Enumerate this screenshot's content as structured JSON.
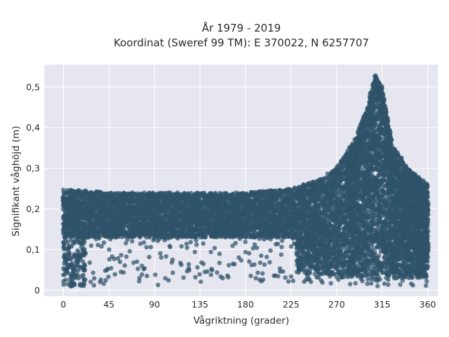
{
  "chart_data": {
    "type": "scatter",
    "title_lines": [
      "År 1979 - 2019",
      "Koordinat (Sweref 99 TM): E 370022, N 6257707"
    ],
    "xlabel": "Vågriktning (grader)",
    "ylabel": "Signifikant våghöjd (m)",
    "xlim": [
      -19,
      370
    ],
    "ylim": [
      -0.015,
      0.555
    ],
    "x_ticks": [
      0,
      45,
      90,
      135,
      180,
      225,
      270,
      315,
      360
    ],
    "x_tick_labels": [
      "0",
      "45",
      "90",
      "135",
      "180",
      "225",
      "270",
      "315",
      "360"
    ],
    "y_ticks": [
      0,
      0.1,
      0.2,
      0.3,
      0.4,
      0.5
    ],
    "y_tick_labels": [
      "0",
      "0,1",
      "0,2",
      "0,3",
      "0,4",
      "0,5"
    ],
    "grid": true,
    "legend": "none",
    "marker_color": "#2f5369",
    "plot_background": "#e5e6ef",
    "series": [
      {
        "description_points": "dense scatter of hourly wave direction vs significant wave height",
        "envelope": [
          {
            "x": 0,
            "y_min": 0.01,
            "y_max": 0.25
          },
          {
            "x": 45,
            "y_min": 0.01,
            "y_max": 0.24
          },
          {
            "x": 90,
            "y_min": 0.01,
            "y_max": 0.24
          },
          {
            "x": 135,
            "y_min": 0.02,
            "y_max": 0.24
          },
          {
            "x": 180,
            "y_min": 0.02,
            "y_max": 0.24
          },
          {
            "x": 225,
            "y_min": 0.02,
            "y_max": 0.25
          },
          {
            "x": 250,
            "y_min": 0.02,
            "y_max": 0.27
          },
          {
            "x": 270,
            "y_min": 0.01,
            "y_max": 0.3
          },
          {
            "x": 290,
            "y_min": 0.01,
            "y_max": 0.38
          },
          {
            "x": 300,
            "y_min": 0.01,
            "y_max": 0.45
          },
          {
            "x": 308,
            "y_min": 0.01,
            "y_max": 0.53
          },
          {
            "x": 315,
            "y_min": 0.01,
            "y_max": 0.5
          },
          {
            "x": 325,
            "y_min": 0.01,
            "y_max": 0.36
          },
          {
            "x": 340,
            "y_min": 0.01,
            "y_max": 0.3
          },
          {
            "x": 360,
            "y_min": 0.01,
            "y_max": 0.26
          }
        ]
      }
    ]
  }
}
